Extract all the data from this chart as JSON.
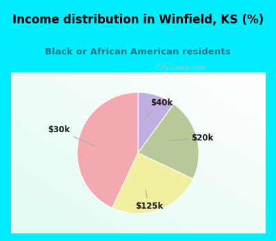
{
  "title": "Income distribution in Winfield, KS (%)",
  "subtitle": "Black or African American residents",
  "slices": [
    {
      "label": "$40k",
      "value": 10,
      "color": "#c0aee0"
    },
    {
      "label": "$20k",
      "value": 22,
      "color": "#b8c898"
    },
    {
      "label": "$125k",
      "value": 25,
      "color": "#f0f0a0"
    },
    {
      "label": "$30k",
      "value": 43,
      "color": "#f4a8b0"
    }
  ],
  "startangle": 90,
  "bg_color": "#00eeff",
  "chart_bg_color": "#e8f5ee",
  "title_color": "#000000",
  "subtitle_color": "#007a8a",
  "watermark": "City-Data.com",
  "watermark_color": "#b0c8d0",
  "label_color": "#1a1a1a",
  "leader_color": "#aaaaaa",
  "label_fontsize": 8.5,
  "title_fontsize": 12,
  "subtitle_fontsize": 9.5
}
